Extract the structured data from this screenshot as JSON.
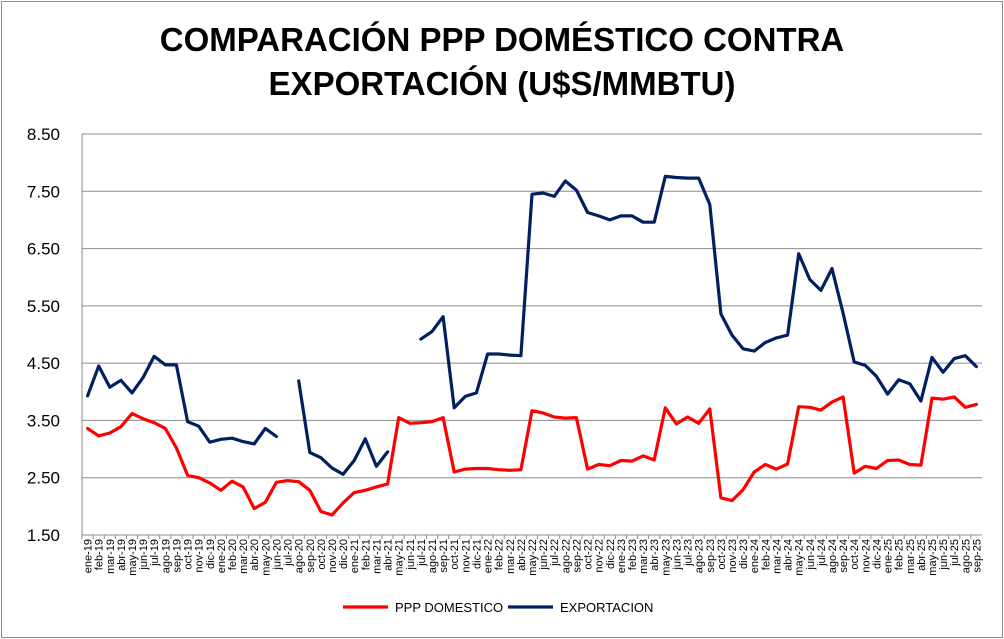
{
  "chart_data": {
    "type": "line",
    "title_line1": "COMPARACIÓN PPP DOMÉSTICO CONTRA",
    "title_line2": "EXPORTACIÓN (U$S/MMBTU)",
    "ylim": [
      1.5,
      8.5
    ],
    "yticks": [
      "8.50",
      "7.50",
      "6.50",
      "5.50",
      "4.50",
      "3.50",
      "2.50",
      "1.50"
    ],
    "ytick_values": [
      8.5,
      7.5,
      6.5,
      5.5,
      4.5,
      3.5,
      2.5,
      1.5
    ],
    "grid": true,
    "legend_position": "bottom",
    "categories": [
      "ene-19",
      "feb-19",
      "mar-19",
      "abr-19",
      "may-19",
      "jun-19",
      "jul-19",
      "ago-19",
      "sep-19",
      "oct-19",
      "nov-19",
      "dic-19",
      "ene-20",
      "feb-20",
      "mar-20",
      "abr-20",
      "may-20",
      "jun-20",
      "jul-20",
      "ago-20",
      "sep-20",
      "oct-20",
      "nov-20",
      "dic-20",
      "ene-21",
      "feb-21",
      "mar-21",
      "abr-21",
      "may-21",
      "jun-21",
      "jul-21",
      "ago-21",
      "sep-21",
      "oct-21",
      "nov-21",
      "dic-21",
      "ene-22",
      "feb-22",
      "mar-22",
      "abr-22",
      "may-22",
      "jun-22",
      "jul-22",
      "ago-22",
      "sep-22",
      "oct-22",
      "nov-22",
      "dic-22",
      "ene-23",
      "feb-23",
      "mar-23",
      "abr-23",
      "may-23",
      "jun-23",
      "jul-23",
      "ago-23",
      "sep-23",
      "oct-23",
      "nov-23",
      "dic-23",
      "ene-24",
      "feb-24",
      "mar-24",
      "abr-24",
      "may-24",
      "jun-24",
      "jul-24",
      "ago-24",
      "sep-24",
      "oct-24",
      "nov-24",
      "dic-24",
      "ene-25",
      "feb-25",
      "mar-25",
      "abr-25",
      "may-25",
      "jun-25",
      "jul-25",
      "ago-25",
      "sep-25"
    ],
    "xtick_labels": [
      "ene-19",
      "feb-19",
      "mar-19",
      "abr-19",
      "may-19",
      "jun-19",
      "jul-19",
      "ago-19",
      "sep-19",
      "oct-19",
      "nov-19",
      "dic-19",
      "ene-20",
      "feb-20",
      "mar-20",
      "abr-20",
      "may-20",
      "jun-20",
      "jul-20",
      "ago-20",
      "sep-20",
      "oct-20",
      "nov-20",
      "dic-20",
      "ene-21",
      "feb-21",
      "mar-21",
      "abr-21",
      "may-21",
      "jun-21",
      "jul-21",
      "ago-21",
      "sep-21",
      "oct-21",
      "nov-21",
      "dic-21",
      "ene-22",
      "feb-22",
      "mar-22",
      "abr-22",
      "may-22",
      "jun-22",
      "jul-22",
      "ago-22",
      "sep-22",
      "oct-22",
      "nov-22",
      "dic-22",
      "ene-23",
      "feb-23",
      "mar-23",
      "abr-23",
      "may-23",
      "jun-23",
      "jul-23",
      "ago-23",
      "sep-23",
      "oct-23",
      "nov-23",
      "dic-23",
      "ene-24",
      "feb-24",
      "mar-24",
      "abr-24",
      "may-24",
      "jun-24",
      "jul-24",
      "ago-24",
      "sep-24",
      "oct-24",
      "nov-24",
      "dic-24",
      "ene-25",
      "feb-25",
      "mar-25",
      "abr-25",
      "may-25",
      "jun-25",
      "jul-25",
      "ago-25",
      "sep-25"
    ],
    "series": [
      {
        "name": "PPP DOMESTICO",
        "color": "#ff0000",
        "values": [
          3.36,
          3.23,
          3.28,
          3.39,
          3.62,
          3.53,
          3.46,
          3.36,
          3.02,
          2.54,
          2.5,
          2.41,
          2.28,
          2.44,
          2.34,
          1.96,
          2.07,
          2.42,
          2.45,
          2.43,
          2.28,
          1.91,
          1.85,
          2.06,
          2.24,
          2.28,
          2.34,
          2.39,
          3.55,
          3.45,
          3.46,
          3.48,
          3.55,
          2.6,
          2.65,
          2.66,
          2.66,
          2.64,
          2.63,
          2.64,
          3.67,
          3.63,
          3.56,
          3.54,
          3.55,
          2.65,
          2.73,
          2.71,
          2.8,
          2.79,
          2.88,
          2.81,
          3.72,
          3.44,
          3.56,
          3.45,
          3.7,
          2.15,
          2.1,
          2.29,
          2.6,
          2.73,
          2.65,
          2.74,
          3.74,
          3.73,
          3.68,
          3.82,
          3.91,
          2.58,
          2.7,
          2.66,
          2.8,
          2.81,
          2.73,
          2.72,
          3.89,
          3.87,
          3.91,
          3.73,
          3.78
        ]
      },
      {
        "name": "EXPORTACION",
        "color": "#002060",
        "values": [
          3.93,
          4.45,
          4.08,
          4.2,
          3.98,
          4.25,
          4.62,
          4.47,
          4.47,
          3.48,
          3.4,
          3.12,
          3.17,
          3.19,
          3.13,
          3.09,
          3.36,
          3.22,
          null,
          4.19,
          2.94,
          2.85,
          2.67,
          2.56,
          2.8,
          3.18,
          2.7,
          2.95,
          null,
          null,
          4.92,
          5.05,
          5.31,
          3.72,
          3.92,
          3.98,
          4.66,
          4.66,
          4.64,
          4.63,
          7.45,
          7.47,
          7.41,
          7.68,
          7.52,
          7.13,
          7.07,
          7.0,
          7.07,
          7.07,
          6.96,
          6.96,
          7.76,
          7.74,
          7.73,
          7.73,
          7.27,
          5.36,
          4.99,
          4.75,
          4.71,
          4.86,
          4.94,
          4.99,
          6.41,
          5.96,
          5.77,
          6.15,
          5.37,
          4.52,
          4.46,
          4.27,
          3.96,
          4.21,
          4.14,
          3.84,
          4.6,
          4.34,
          4.58,
          4.63,
          4.44
        ]
      }
    ]
  }
}
